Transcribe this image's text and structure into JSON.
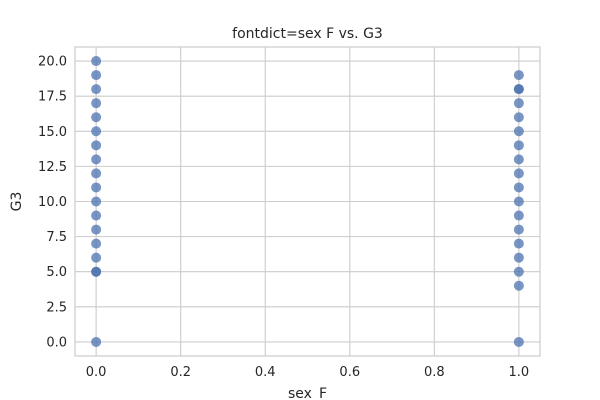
{
  "chart_data": {
    "type": "scatter",
    "title": "fontdict=sex F vs. G3",
    "xlabel": "sex_F",
    "ylabel": "G3",
    "xlim": [
      -0.05,
      1.05
    ],
    "ylim": [
      -1.0,
      21.0
    ],
    "xticks": [
      0.0,
      0.2,
      0.4,
      0.6,
      0.8,
      1.0
    ],
    "xtick_labels": [
      "0.0",
      "0.2",
      "0.4",
      "0.6",
      "0.8",
      "1.0"
    ],
    "yticks": [
      0.0,
      2.5,
      5.0,
      7.5,
      10.0,
      12.5,
      15.0,
      17.5,
      20.0
    ],
    "ytick_labels": [
      "0.0",
      "2.5",
      "5.0",
      "7.5",
      "10.0",
      "12.5",
      "15.0",
      "17.5",
      "20.0"
    ],
    "grid": true,
    "point_color": "#4c72b0",
    "series": [
      {
        "x": [
          0,
          0,
          0,
          0,
          0,
          0,
          0,
          0,
          0,
          0,
          0,
          0,
          0,
          0,
          0,
          0,
          0,
          0
        ],
        "y": [
          0,
          5,
          6,
          7,
          8,
          9,
          10,
          11,
          12,
          13,
          14,
          15,
          16,
          17,
          18,
          19,
          20,
          5
        ]
      },
      {
        "x": [
          1,
          1,
          1,
          1,
          1,
          1,
          1,
          1,
          1,
          1,
          1,
          1,
          1,
          1,
          1,
          1,
          1,
          1
        ],
        "y": [
          0,
          4,
          5,
          6,
          7,
          8,
          9,
          10,
          11,
          12,
          13,
          14,
          15,
          16,
          17,
          18,
          19,
          18
        ]
      }
    ]
  }
}
